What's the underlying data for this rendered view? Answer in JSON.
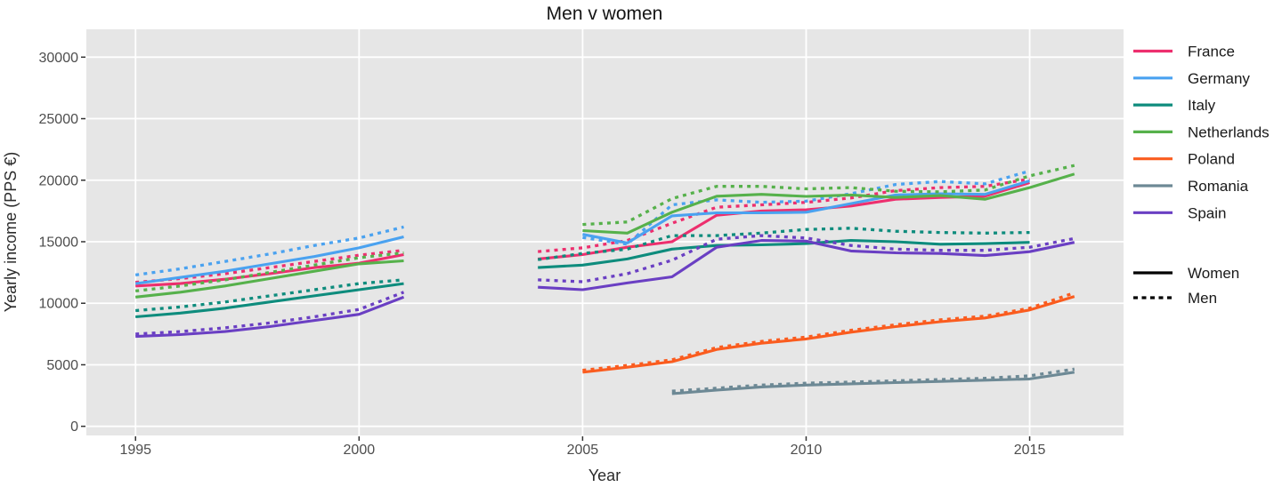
{
  "title": "Men v women",
  "x_axis": {
    "label": "Year",
    "ticks": [
      1995,
      2000,
      2005,
      2010,
      2015
    ]
  },
  "y_axis": {
    "label": "Yearly income (PPS €)",
    "ticks": [
      0,
      5000,
      10000,
      15000,
      20000,
      25000,
      30000
    ]
  },
  "legend": {
    "countries": [
      {
        "label": "France",
        "color": "#ed2f6e"
      },
      {
        "label": "Germany",
        "color": "#4aa2f0"
      },
      {
        "label": "Italy",
        "color": "#0e8c7d"
      },
      {
        "label": "Netherlands",
        "color": "#56b14b"
      },
      {
        "label": "Poland",
        "color": "#fa5c1f"
      },
      {
        "label": "Romania",
        "color": "#6d8995"
      },
      {
        "label": "Spain",
        "color": "#6a3fc3"
      }
    ],
    "linetypes": [
      {
        "label": "Women",
        "style": "solid"
      },
      {
        "label": "Men",
        "style": "dashed"
      }
    ]
  },
  "chart_data": {
    "type": "line",
    "title": "Men v women",
    "xlabel": "Year",
    "ylabel": "Yearly income (PPS €)",
    "ylim": [
      0,
      30000
    ],
    "x_range": [
      1993.9,
      2017.1
    ],
    "x_ticks": [
      1995,
      2000,
      2005,
      2010,
      2015
    ],
    "y_ticks": [
      0,
      5000,
      10000,
      15000,
      20000,
      25000,
      30000
    ],
    "grid": true,
    "legend_position": "right",
    "panel_background": "#e6e6e6",
    "gridline_color": "#ffffff",
    "series": [
      {
        "country": "France",
        "gender": "Women",
        "color": "#ed2f6e",
        "segments": [
          {
            "years": [
              1995,
              1996,
              1997,
              1998,
              1999,
              2000,
              2001
            ],
            "values": [
              11400,
              11600,
              11950,
              12400,
              12900,
              13250,
              13950
            ]
          },
          {
            "years": [
              2004,
              2005,
              2006,
              2007,
              2008,
              2009,
              2010,
              2011,
              2012,
              2013,
              2014,
              2015
            ],
            "values": [
              13600,
              13950,
              14550,
              15000,
              17150,
              17500,
              17600,
              17900,
              18450,
              18600,
              18700,
              19800
            ]
          }
        ]
      },
      {
        "country": "France",
        "gender": "Men",
        "color": "#ed2f6e",
        "segments": [
          {
            "years": [
              1995,
              1996,
              1997,
              1998,
              1999,
              2000,
              2001
            ],
            "values": [
              11700,
              12000,
              12400,
              12900,
              13400,
              13900,
              14300
            ]
          },
          {
            "years": [
              2004,
              2005,
              2006,
              2007,
              2008,
              2009,
              2010,
              2011,
              2012,
              2013,
              2014,
              2015
            ],
            "values": [
              14200,
              14500,
              15100,
              16500,
              17800,
              18000,
              18200,
              18550,
              19150,
              19400,
              19500,
              20100
            ]
          }
        ]
      },
      {
        "country": "Germany",
        "gender": "Women",
        "color": "#4aa2f0",
        "segments": [
          {
            "years": [
              1995,
              1996,
              1997,
              1998,
              1999,
              2000,
              2001
            ],
            "values": [
              11600,
              12100,
              12600,
              13200,
              13800,
              14500,
              15400
            ]
          },
          {
            "years": [
              2005,
              2006,
              2007,
              2008,
              2009,
              2010,
              2011,
              2012,
              2013,
              2014,
              2015
            ],
            "values": [
              15600,
              14900,
              17100,
              17350,
              17350,
              17400,
              18100,
              18800,
              18900,
              18850,
              19950
            ]
          }
        ]
      },
      {
        "country": "Germany",
        "gender": "Men",
        "color": "#4aa2f0",
        "segments": [
          {
            "years": [
              1995,
              1996,
              1997,
              1998,
              1999,
              2000,
              2001
            ],
            "values": [
              12300,
              12800,
              13400,
              14000,
              14700,
              15300,
              16200
            ]
          },
          {
            "years": [
              2005,
              2006,
              2007,
              2008,
              2009,
              2010,
              2011,
              2012,
              2013,
              2014,
              2015
            ],
            "values": [
              15350,
              14800,
              18000,
              18400,
              18200,
              18300,
              18900,
              19650,
              19900,
              19700,
              20750
            ]
          }
        ]
      },
      {
        "country": "Italy",
        "gender": "Women",
        "color": "#0e8c7d",
        "segments": [
          {
            "years": [
              1995,
              1996,
              1997,
              1998,
              1999,
              2000,
              2001
            ],
            "values": [
              8900,
              9200,
              9600,
              10100,
              10600,
              11100,
              11600
            ]
          },
          {
            "years": [
              2004,
              2005,
              2006,
              2007,
              2008,
              2009,
              2010,
              2011,
              2012,
              2013,
              2014,
              2015
            ],
            "values": [
              12900,
              13100,
              13600,
              14400,
              14700,
              14750,
              14850,
              15100,
              15000,
              14800,
              14850,
              14950
            ]
          }
        ]
      },
      {
        "country": "Italy",
        "gender": "Men",
        "color": "#0e8c7d",
        "segments": [
          {
            "years": [
              1995,
              1996,
              1997,
              1998,
              1999,
              2000,
              2001
            ],
            "values": [
              9400,
              9700,
              10100,
              10600,
              11100,
              11600,
              11900
            ]
          },
          {
            "years": [
              2004,
              2005,
              2006,
              2007,
              2008,
              2009,
              2010,
              2011,
              2012,
              2013,
              2014,
              2015
            ],
            "values": [
              13550,
              14050,
              14400,
              15500,
              15500,
              15700,
              16000,
              16100,
              15850,
              15750,
              15700,
              15750
            ]
          }
        ]
      },
      {
        "country": "Netherlands",
        "gender": "Women",
        "color": "#56b14b",
        "segments": [
          {
            "years": [
              1995,
              1996,
              1997,
              1998,
              1999,
              2000,
              2001
            ],
            "values": [
              10500,
              10900,
              11400,
              12000,
              12600,
              13200,
              13450
            ]
          },
          {
            "years": [
              2005,
              2006,
              2007,
              2008,
              2009,
              2010,
              2011,
              2012,
              2013,
              2014,
              2015,
              2016
            ],
            "values": [
              15900,
              15700,
              17400,
              18700,
              18850,
              18680,
              18800,
              18600,
              18750,
              18450,
              19400,
              20500
            ]
          }
        ]
      },
      {
        "country": "Netherlands",
        "gender": "Men",
        "color": "#56b14b",
        "segments": [
          {
            "years": [
              1995,
              1996,
              1997,
              1998,
              1999,
              2000,
              2001
            ],
            "values": [
              11000,
              11400,
              11900,
              12500,
              13100,
              13700,
              14100
            ]
          },
          {
            "years": [
              2005,
              2006,
              2007,
              2008,
              2009,
              2010,
              2011,
              2012,
              2013,
              2014,
              2015,
              2016
            ],
            "values": [
              16400,
              16600,
              18500,
              19500,
              19500,
              19300,
              19400,
              19100,
              19050,
              19200,
              20350,
              21200
            ]
          }
        ]
      },
      {
        "country": "Poland",
        "gender": "Women",
        "color": "#fa5c1f",
        "segments": [
          {
            "years": [
              2005,
              2006,
              2007,
              2008,
              2009,
              2010,
              2011,
              2012,
              2013,
              2014,
              2015,
              2016
            ],
            "values": [
              4400,
              4800,
              5250,
              6250,
              6750,
              7100,
              7650,
              8100,
              8500,
              8800,
              9450,
              10550
            ]
          }
        ]
      },
      {
        "country": "Poland",
        "gender": "Men",
        "color": "#fa5c1f",
        "segments": [
          {
            "years": [
              2005,
              2006,
              2007,
              2008,
              2009,
              2010,
              2011,
              2012,
              2013,
              2014,
              2015,
              2016
            ],
            "values": [
              4550,
              4950,
              5400,
              6400,
              6900,
              7250,
              7800,
              8250,
              8650,
              8950,
              9600,
              10850
            ]
          }
        ]
      },
      {
        "country": "Romania",
        "gender": "Women",
        "color": "#6d8995",
        "segments": [
          {
            "years": [
              2007,
              2008,
              2009,
              2010,
              2011,
              2012,
              2013,
              2014,
              2015,
              2016
            ],
            "values": [
              2650,
              2950,
              3200,
              3350,
              3450,
              3550,
              3650,
              3750,
              3850,
              4400
            ]
          }
        ]
      },
      {
        "country": "Romania",
        "gender": "Men",
        "color": "#6d8995",
        "segments": [
          {
            "years": [
              2007,
              2008,
              2009,
              2010,
              2011,
              2012,
              2013,
              2014,
              2015,
              2016
            ],
            "values": [
              2850,
              3100,
              3350,
              3500,
              3600,
              3700,
              3800,
              3900,
              4100,
              4650
            ]
          }
        ]
      },
      {
        "country": "Spain",
        "gender": "Women",
        "color": "#6a3fc3",
        "segments": [
          {
            "years": [
              1995,
              1996,
              1997,
              1998,
              1999,
              2000,
              2001
            ],
            "values": [
              7300,
              7450,
              7700,
              8100,
              8600,
              9100,
              10500
            ]
          },
          {
            "years": [
              2004,
              2005,
              2006,
              2007,
              2008,
              2009,
              2010,
              2011,
              2012,
              2013,
              2014,
              2015,
              2016
            ],
            "values": [
              11300,
              11100,
              11650,
              12150,
              14550,
              15100,
              15050,
              14250,
              14100,
              14050,
              13870,
              14190,
              14950
            ]
          }
        ]
      },
      {
        "country": "Spain",
        "gender": "Men",
        "color": "#6a3fc3",
        "segments": [
          {
            "years": [
              1995,
              1996,
              1997,
              1998,
              1999,
              2000,
              2001
            ],
            "values": [
              7500,
              7700,
              8000,
              8400,
              8900,
              9500,
              10900
            ]
          },
          {
            "years": [
              2004,
              2005,
              2006,
              2007,
              2008,
              2009,
              2010,
              2011,
              2012,
              2013,
              2014,
              2015,
              2016
            ],
            "values": [
              11900,
              11750,
              12400,
              13500,
              15200,
              15500,
              15300,
              14700,
              14400,
              14300,
              14300,
              14550,
              15260
            ]
          }
        ]
      }
    ]
  }
}
